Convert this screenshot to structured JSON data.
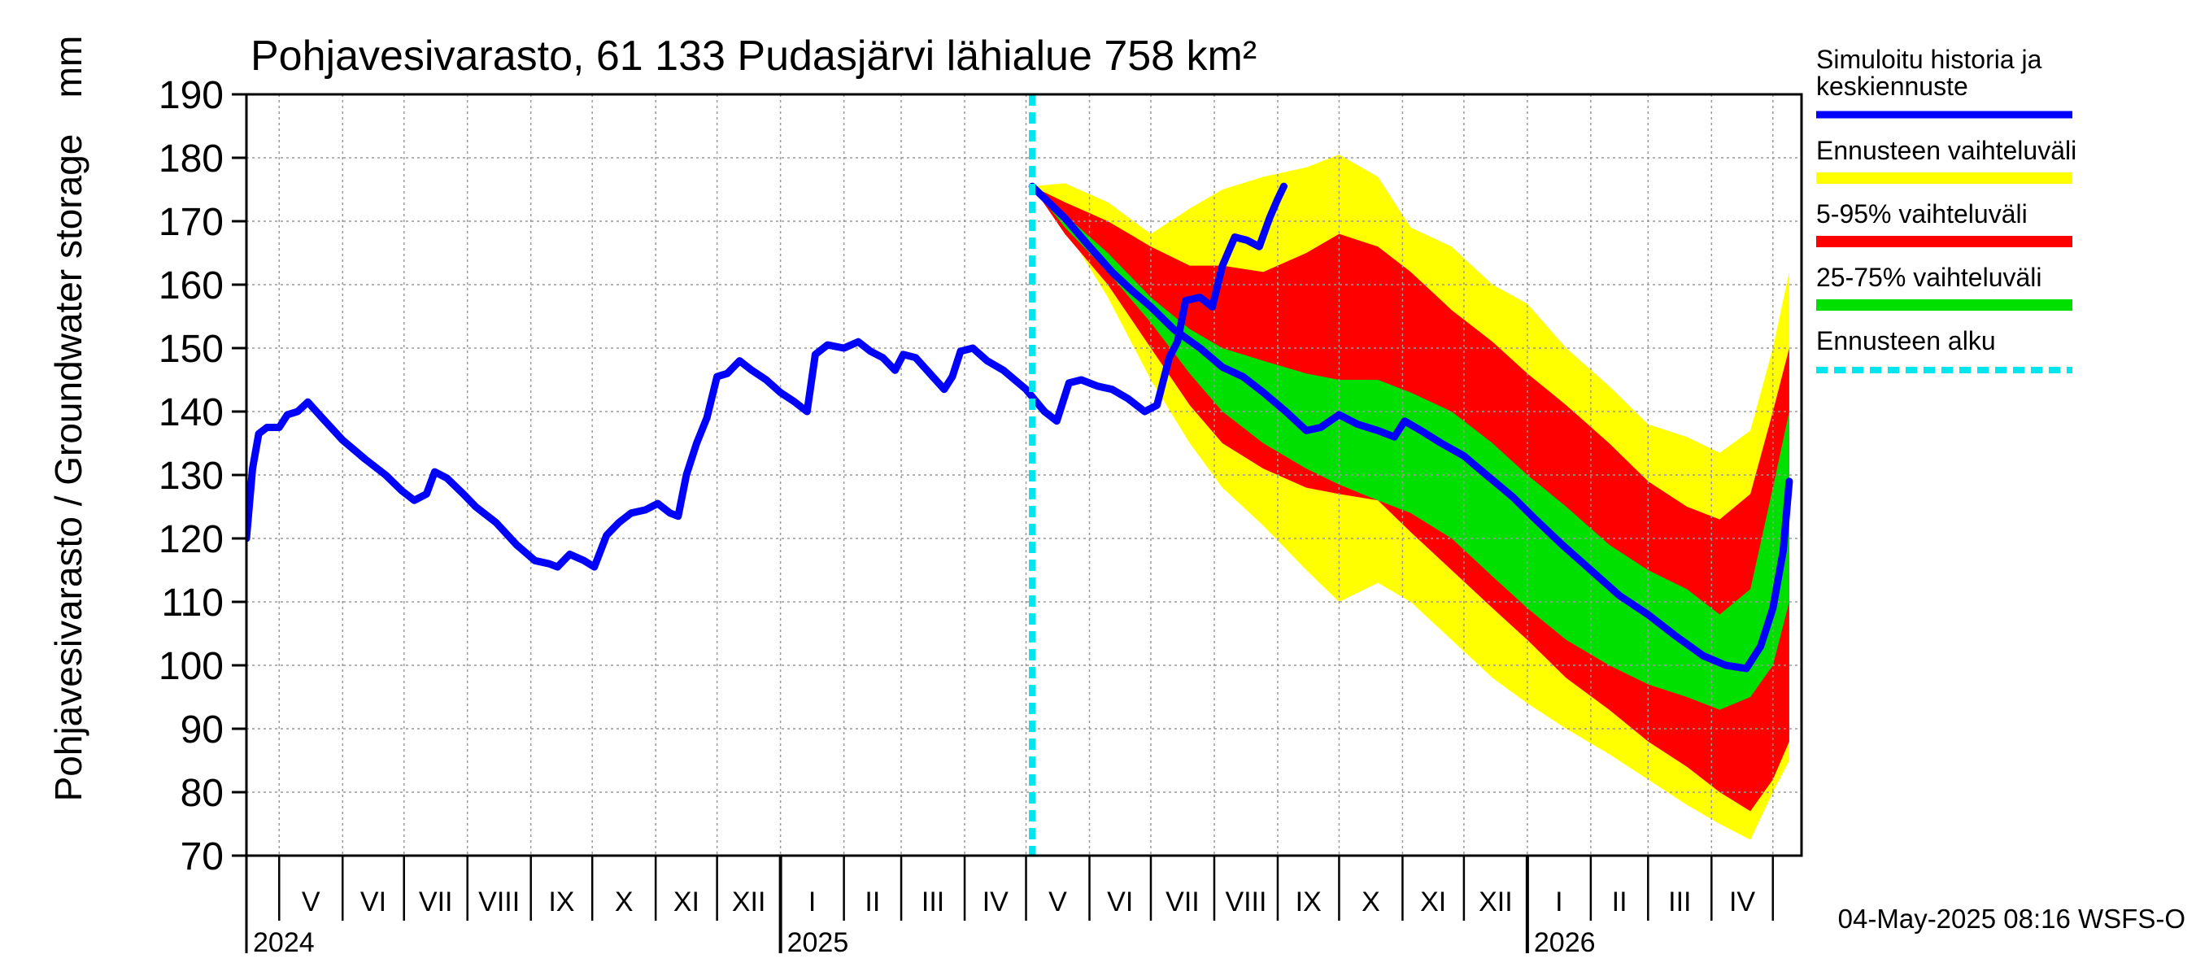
{
  "chart_data": {
    "type": "area",
    "title": "Pohjavesivarasto, 61 133 Pudasjärvi lähialue 758 km²",
    "ylabel": "Pohjavesivarasto / Groundwater storage",
    "yunit": "mm",
    "ylim": [
      70,
      190
    ],
    "yticks": [
      70,
      80,
      90,
      100,
      110,
      120,
      130,
      140,
      150,
      160,
      170,
      180,
      190
    ],
    "xlim": [
      "2024-04-15",
      "2026-05-15"
    ],
    "grid": true,
    "legend_position": "right",
    "month_labels": [
      {
        "label": "V",
        "date": "2024-05-01"
      },
      {
        "label": "VI",
        "date": "2024-06-01"
      },
      {
        "label": "VII",
        "date": "2024-07-01"
      },
      {
        "label": "VIII",
        "date": "2024-08-01"
      },
      {
        "label": "IX",
        "date": "2024-09-01"
      },
      {
        "label": "X",
        "date": "2024-10-01"
      },
      {
        "label": "XI",
        "date": "2024-11-01"
      },
      {
        "label": "XII",
        "date": "2024-12-01"
      },
      {
        "label": "I",
        "date": "2025-01-01"
      },
      {
        "label": "II",
        "date": "2025-02-01"
      },
      {
        "label": "III",
        "date": "2025-03-01"
      },
      {
        "label": "IV",
        "date": "2025-04-01"
      },
      {
        "label": "V",
        "date": "2025-05-01"
      },
      {
        "label": "VI",
        "date": "2025-06-01"
      },
      {
        "label": "VII",
        "date": "2025-07-01"
      },
      {
        "label": "VIII",
        "date": "2025-08-01"
      },
      {
        "label": "IX",
        "date": "2025-09-01"
      },
      {
        "label": "X",
        "date": "2025-10-01"
      },
      {
        "label": "XI",
        "date": "2025-11-01"
      },
      {
        "label": "XII",
        "date": "2025-12-01"
      },
      {
        "label": "I",
        "date": "2026-01-01"
      },
      {
        "label": "II",
        "date": "2026-02-01"
      },
      {
        "label": "III",
        "date": "2026-03-01"
      },
      {
        "label": "IV",
        "date": "2026-04-01"
      }
    ],
    "year_labels": [
      {
        "label": "2024",
        "date": "2024-04-15"
      },
      {
        "label": "2025",
        "date": "2025-01-01"
      },
      {
        "label": "2026",
        "date": "2026-01-01"
      }
    ],
    "forecast_start": "2025-05-04",
    "legend": [
      {
        "label": "Simuloitu historia ja keskiennuste",
        "line1": "Simuloitu historia ja",
        "line2": "keskiennuste",
        "color": "#0000ff",
        "style": "solid"
      },
      {
        "label": "Ennusteen vaihteluväli",
        "color": "#ffff00",
        "style": "solid"
      },
      {
        "label": "5-95% vaihteluväli",
        "color": "#ff0000",
        "style": "solid"
      },
      {
        "label": "25-75% vaihteluväli",
        "color": "#00e000",
        "style": "solid"
      },
      {
        "label": "Ennusteen alku",
        "color": "#00e5ee",
        "style": "dashed"
      }
    ],
    "history": {
      "name": "Simuloitu historia ja keskiennuste",
      "color": "#0000ff",
      "points": [
        [
          "2024-04-15",
          120
        ],
        [
          "2024-04-18",
          131
        ],
        [
          "2024-04-21",
          136.5
        ],
        [
          "2024-04-25",
          137.5
        ],
        [
          "2024-05-01",
          137.5
        ],
        [
          "2024-05-05",
          139.5
        ],
        [
          "2024-05-10",
          140
        ],
        [
          "2024-05-15",
          141.5
        ],
        [
          "2024-05-22",
          139
        ],
        [
          "2024-06-01",
          135.5
        ],
        [
          "2024-06-12",
          132.5
        ],
        [
          "2024-06-22",
          130
        ],
        [
          "2024-06-30",
          127.5
        ],
        [
          "2024-07-06",
          126
        ],
        [
          "2024-07-12",
          127
        ],
        [
          "2024-07-16",
          130.5
        ],
        [
          "2024-07-22",
          129.5
        ],
        [
          "2024-07-30",
          127
        ],
        [
          "2024-08-05",
          125
        ],
        [
          "2024-08-15",
          122.5
        ],
        [
          "2024-08-25",
          119
        ],
        [
          "2024-09-03",
          116.5
        ],
        [
          "2024-09-10",
          116
        ],
        [
          "2024-09-14",
          115.5
        ],
        [
          "2024-09-20",
          117.5
        ],
        [
          "2024-09-27",
          116.5
        ],
        [
          "2024-10-02",
          115.5
        ],
        [
          "2024-10-08",
          120.5
        ],
        [
          "2024-10-14",
          122.5
        ],
        [
          "2024-10-20",
          124
        ],
        [
          "2024-10-27",
          124.5
        ],
        [
          "2024-11-02",
          125.5
        ],
        [
          "2024-11-08",
          124
        ],
        [
          "2024-11-12",
          123.5
        ],
        [
          "2024-11-16",
          130
        ],
        [
          "2024-11-21",
          135
        ],
        [
          "2024-11-26",
          139
        ],
        [
          "2024-12-01",
          145.5
        ],
        [
          "2024-12-06",
          146
        ],
        [
          "2024-12-12",
          148
        ],
        [
          "2024-12-18",
          146.5
        ],
        [
          "2024-12-25",
          145
        ],
        [
          "2025-01-01",
          143
        ],
        [
          "2025-01-08",
          141.5
        ],
        [
          "2025-01-14",
          140
        ],
        [
          "2025-01-18",
          149
        ],
        [
          "2025-01-24",
          150.5
        ],
        [
          "2025-02-01",
          150
        ],
        [
          "2025-02-08",
          151
        ],
        [
          "2025-02-14",
          149.5
        ],
        [
          "2025-02-20",
          148.5
        ],
        [
          "2025-02-26",
          146.5
        ],
        [
          "2025-03-02",
          149
        ],
        [
          "2025-03-08",
          148.5
        ],
        [
          "2025-03-15",
          146
        ],
        [
          "2025-03-22",
          143.5
        ],
        [
          "2025-03-26",
          145.5
        ],
        [
          "2025-03-30",
          149.5
        ],
        [
          "2025-04-05",
          150
        ],
        [
          "2025-04-12",
          148
        ],
        [
          "2025-04-20",
          146.5
        ],
        [
          "2025-05-01",
          143.5
        ],
        [
          "2025-05-10",
          140
        ],
        [
          "2025-05-16",
          138.5
        ],
        [
          "2025-05-22",
          144.5
        ],
        [
          "2025-05-28",
          145
        ],
        [
          "2025-06-05",
          144
        ],
        [
          "2025-06-12",
          143.5
        ],
        [
          "2025-06-20",
          142
        ],
        [
          "2025-06-28",
          140
        ],
        [
          "2025-07-04",
          141
        ],
        [
          "2025-07-10",
          148.5
        ],
        [
          "2025-07-14",
          151
        ],
        [
          "2025-07-18",
          157.5
        ],
        [
          "2025-07-25",
          158
        ],
        [
          "2025-07-31",
          156.5
        ],
        [
          "2025-08-05",
          163
        ],
        [
          "2025-08-11",
          167.5
        ],
        [
          "2025-08-17",
          167
        ],
        [
          "2025-08-23",
          166
        ],
        [
          "2025-08-28",
          170.5
        ],
        [
          "2025-09-01",
          173.5
        ],
        [
          "2025-09-04",
          175.5
        ]
      ]
    },
    "forecast_band_min_max": {
      "name": "Ennusteen vaihteluväli",
      "color": "#ffff00",
      "upper": [
        [
          "2025-05-04",
          175.5
        ],
        [
          "2025-05-20",
          176
        ],
        [
          "2025-06-10",
          173
        ],
        [
          "2025-07-01",
          168
        ],
        [
          "2025-07-20",
          172
        ],
        [
          "2025-08-05",
          175
        ],
        [
          "2025-08-25",
          177
        ],
        [
          "2025-09-15",
          178.5
        ],
        [
          "2025-10-01",
          180.5
        ],
        [
          "2025-10-20",
          177
        ],
        [
          "2025-11-05",
          169
        ],
        [
          "2025-11-25",
          166
        ],
        [
          "2025-12-15",
          160
        ],
        [
          "2026-01-01",
          157
        ],
        [
          "2026-01-20",
          150
        ],
        [
          "2026-02-10",
          144
        ],
        [
          "2026-03-01",
          138
        ],
        [
          "2026-03-20",
          136
        ],
        [
          "2026-04-05",
          133.5
        ],
        [
          "2026-04-20",
          137
        ],
        [
          "2026-05-01",
          150
        ],
        [
          "2026-05-09",
          162
        ]
      ],
      "lower": [
        [
          "2025-05-04",
          175.5
        ],
        [
          "2025-05-20",
          169
        ],
        [
          "2025-06-10",
          158
        ],
        [
          "2025-07-01",
          145
        ],
        [
          "2025-07-20",
          135
        ],
        [
          "2025-08-05",
          128
        ],
        [
          "2025-08-25",
          122
        ],
        [
          "2025-09-15",
          115
        ],
        [
          "2025-10-01",
          110
        ],
        [
          "2025-10-20",
          113
        ],
        [
          "2025-11-05",
          110
        ],
        [
          "2025-11-25",
          104
        ],
        [
          "2025-12-15",
          98
        ],
        [
          "2026-01-01",
          94
        ],
        [
          "2026-01-20",
          90
        ],
        [
          "2026-02-10",
          86
        ],
        [
          "2026-03-01",
          82
        ],
        [
          "2026-03-20",
          78
        ],
        [
          "2026-04-05",
          75
        ],
        [
          "2026-04-20",
          72.5
        ],
        [
          "2026-05-01",
          80
        ],
        [
          "2026-05-09",
          85
        ]
      ]
    },
    "forecast_band_5_95": {
      "name": "5-95% vaihteluväli",
      "color": "#ff0000",
      "upper": [
        [
          "2025-05-04",
          175.5
        ],
        [
          "2025-05-20",
          173
        ],
        [
          "2025-06-10",
          170
        ],
        [
          "2025-07-01",
          166
        ],
        [
          "2025-07-20",
          163
        ],
        [
          "2025-08-05",
          163
        ],
        [
          "2025-08-25",
          162
        ],
        [
          "2025-09-15",
          165
        ],
        [
          "2025-10-01",
          168
        ],
        [
          "2025-10-20",
          166
        ],
        [
          "2025-11-05",
          162
        ],
        [
          "2025-11-25",
          156
        ],
        [
          "2025-12-15",
          151
        ],
        [
          "2026-01-01",
          146
        ],
        [
          "2026-01-20",
          141
        ],
        [
          "2026-02-10",
          135
        ],
        [
          "2026-03-01",
          129
        ],
        [
          "2026-03-20",
          125
        ],
        [
          "2026-04-05",
          123
        ],
        [
          "2026-04-20",
          127
        ],
        [
          "2026-05-01",
          140
        ],
        [
          "2026-05-09",
          150
        ]
      ],
      "lower": [
        [
          "2025-05-04",
          175.5
        ],
        [
          "2025-05-20",
          168
        ],
        [
          "2025-06-10",
          160
        ],
        [
          "2025-07-01",
          150
        ],
        [
          "2025-07-20",
          141
        ],
        [
          "2025-08-05",
          135
        ],
        [
          "2025-08-25",
          131
        ],
        [
          "2025-09-15",
          128
        ],
        [
          "2025-10-01",
          127
        ],
        [
          "2025-10-20",
          126
        ],
        [
          "2025-11-05",
          121
        ],
        [
          "2025-11-25",
          115
        ],
        [
          "2025-12-15",
          109
        ],
        [
          "2026-01-01",
          104
        ],
        [
          "2026-01-20",
          98
        ],
        [
          "2026-02-10",
          93
        ],
        [
          "2026-03-01",
          88
        ],
        [
          "2026-03-20",
          84
        ],
        [
          "2026-04-05",
          80
        ],
        [
          "2026-04-20",
          77
        ],
        [
          "2026-05-01",
          82
        ],
        [
          "2026-05-09",
          88
        ]
      ]
    },
    "forecast_band_25_75": {
      "name": "25-75% vaihteluväli",
      "color": "#00e000",
      "upper": [
        [
          "2025-05-04",
          175.5
        ],
        [
          "2025-05-20",
          171
        ],
        [
          "2025-06-10",
          165
        ],
        [
          "2025-07-01",
          158
        ],
        [
          "2025-07-20",
          153
        ],
        [
          "2025-08-05",
          150
        ],
        [
          "2025-08-25",
          148
        ],
        [
          "2025-09-15",
          146
        ],
        [
          "2025-10-01",
          145
        ],
        [
          "2025-10-20",
          145
        ],
        [
          "2025-11-05",
          143
        ],
        [
          "2025-11-25",
          140
        ],
        [
          "2025-12-15",
          135
        ],
        [
          "2026-01-01",
          130
        ],
        [
          "2026-01-20",
          125
        ],
        [
          "2026-02-10",
          119
        ],
        [
          "2026-03-01",
          115
        ],
        [
          "2026-03-20",
          112
        ],
        [
          "2026-04-05",
          108
        ],
        [
          "2026-04-20",
          112
        ],
        [
          "2026-05-01",
          128
        ],
        [
          "2026-05-09",
          140
        ]
      ],
      "lower": [
        [
          "2025-05-04",
          175.5
        ],
        [
          "2025-05-20",
          169
        ],
        [
          "2025-06-10",
          162
        ],
        [
          "2025-07-01",
          154
        ],
        [
          "2025-07-20",
          146
        ],
        [
          "2025-08-05",
          140
        ],
        [
          "2025-08-25",
          135
        ],
        [
          "2025-09-15",
          131
        ],
        [
          "2025-10-01",
          128.5
        ],
        [
          "2025-10-20",
          126
        ],
        [
          "2025-11-05",
          124
        ],
        [
          "2025-11-25",
          120
        ],
        [
          "2025-12-15",
          114
        ],
        [
          "2026-01-01",
          109
        ],
        [
          "2026-01-20",
          104
        ],
        [
          "2026-02-10",
          100
        ],
        [
          "2026-03-01",
          97
        ],
        [
          "2026-03-20",
          95
        ],
        [
          "2026-04-05",
          93
        ],
        [
          "2026-04-20",
          95
        ],
        [
          "2026-05-01",
          100
        ],
        [
          "2026-05-09",
          110
        ]
      ]
    },
    "forecast_median": {
      "name": "keskiennuste",
      "color": "#0000ff",
      "points": [
        [
          "2025-05-04",
          175.5
        ],
        [
          "2025-05-12",
          173
        ],
        [
          "2025-05-20",
          170.5
        ],
        [
          "2025-06-01",
          166
        ],
        [
          "2025-06-12",
          162
        ],
        [
          "2025-06-22",
          159
        ],
        [
          "2025-07-01",
          156.5
        ],
        [
          "2025-07-12",
          153
        ],
        [
          "2025-07-25",
          150
        ],
        [
          "2025-08-05",
          147
        ],
        [
          "2025-08-15",
          145.5
        ],
        [
          "2025-08-25",
          143
        ],
        [
          "2025-09-05",
          140
        ],
        [
          "2025-09-15",
          137
        ],
        [
          "2025-09-22",
          137.5
        ],
        [
          "2025-10-01",
          139.5
        ],
        [
          "2025-10-10",
          138
        ],
        [
          "2025-10-20",
          137
        ],
        [
          "2025-10-28",
          136
        ],
        [
          "2025-11-02",
          138.5
        ],
        [
          "2025-11-10",
          137
        ],
        [
          "2025-11-20",
          135
        ],
        [
          "2025-12-01",
          133
        ],
        [
          "2025-12-12",
          130
        ],
        [
          "2025-12-25",
          126.5
        ],
        [
          "2026-01-05",
          123
        ],
        [
          "2026-01-18",
          119
        ],
        [
          "2026-02-01",
          115
        ],
        [
          "2026-02-15",
          111
        ],
        [
          "2026-03-01",
          108
        ],
        [
          "2026-03-15",
          104.5
        ],
        [
          "2026-03-28",
          101.5
        ],
        [
          "2026-04-08",
          100
        ],
        [
          "2026-04-18",
          99.5
        ],
        [
          "2026-04-25",
          103
        ],
        [
          "2026-05-01",
          109
        ],
        [
          "2026-05-06",
          118
        ],
        [
          "2026-05-09",
          129
        ]
      ]
    }
  },
  "footer": {
    "timestamp": "04-May-2025 08:16 WSFS-O"
  }
}
